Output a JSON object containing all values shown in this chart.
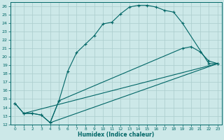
{
  "xlabel": "Humidex (Indice chaleur)",
  "bg_color": "#cce8e8",
  "line_color": "#006666",
  "grid_color": "#aacccc",
  "xlim": [
    -0.5,
    23.5
  ],
  "ylim": [
    12,
    26.5
  ],
  "xticks": [
    0,
    1,
    2,
    3,
    4,
    5,
    6,
    7,
    8,
    9,
    10,
    11,
    12,
    13,
    14,
    15,
    16,
    17,
    18,
    19,
    20,
    21,
    22,
    23
  ],
  "yticks": [
    12,
    13,
    14,
    15,
    16,
    17,
    18,
    19,
    20,
    21,
    22,
    23,
    24,
    25,
    26
  ],
  "line1_x": [
    0,
    1,
    2,
    3,
    4,
    5,
    6,
    7,
    8,
    9,
    10,
    11,
    12,
    13,
    14,
    15,
    16,
    17,
    18,
    19,
    22,
    23
  ],
  "line1_y": [
    14.5,
    13.3,
    13.3,
    13.1,
    12.2,
    14.8,
    18.3,
    20.5,
    21.5,
    22.5,
    23.9,
    24.1,
    25.1,
    25.9,
    26.1,
    26.1,
    25.9,
    25.5,
    25.3,
    24.0,
    19.2,
    19.2
  ],
  "line2_x": [
    0,
    1,
    2,
    3,
    4,
    5,
    19,
    20,
    21,
    22,
    23
  ],
  "line2_y": [
    14.5,
    13.3,
    13.3,
    13.1,
    12.2,
    14.8,
    21.0,
    21.2,
    20.6,
    19.5,
    19.2
  ],
  "line3_x": [
    1,
    23
  ],
  "line3_y": [
    13.3,
    19.2
  ],
  "line4_x": [
    4,
    23
  ],
  "line4_y": [
    12.2,
    19.2
  ]
}
